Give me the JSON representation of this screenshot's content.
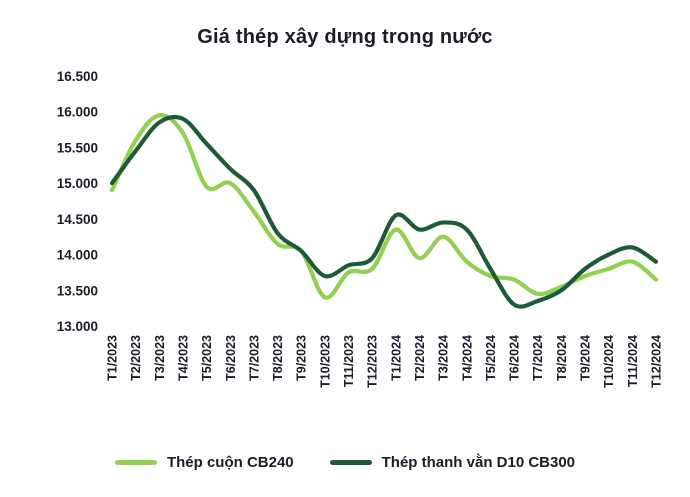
{
  "chart_data": {
    "type": "line",
    "title": "Giá thép xây dựng trong nước",
    "xlabel": "",
    "ylabel": "",
    "grid": false,
    "legend_position": "bottom",
    "x_label_rotation": -90,
    "ylim": [
      13000,
      16500
    ],
    "yticks": [
      {
        "value": 16500,
        "label": "16.500"
      },
      {
        "value": 16000,
        "label": "16.000"
      },
      {
        "value": 15500,
        "label": "15.500"
      },
      {
        "value": 15000,
        "label": "15.000"
      },
      {
        "value": 14500,
        "label": "14.500"
      },
      {
        "value": 14000,
        "label": "14.000"
      },
      {
        "value": 13500,
        "label": "13.500"
      },
      {
        "value": 13000,
        "label": "13.000"
      }
    ],
    "categories": [
      "T1/2023",
      "T2/2023",
      "T3/2023",
      "T4/2023",
      "T5/2023",
      "T6/2023",
      "T7/2023",
      "T8/2023",
      "T9/2023",
      "T10/2023",
      "T11/2023",
      "T12/2023",
      "T1/2024",
      "T2/2024",
      "T3/2024",
      "T4/2024",
      "T5/2024",
      "T6/2024",
      "T7/2024",
      "T8/2024",
      "T9/2024",
      "T10/2024",
      "T11/2024",
      "T12/2024"
    ],
    "series": [
      {
        "name": "Thép cuộn CB240",
        "color": "#92d050",
        "values": [
          14900,
          15600,
          15950,
          15700,
          14950,
          15000,
          14600,
          14150,
          14050,
          13400,
          13750,
          13800,
          14350,
          13950,
          14250,
          13900,
          13700,
          13650,
          13450,
          13550,
          13700,
          13800,
          13900,
          13650
        ]
      },
      {
        "name": "Thép thanh vằn D10 CB300",
        "color": "#1d5b38",
        "values": [
          15000,
          15450,
          15850,
          15900,
          15550,
          15200,
          14900,
          14300,
          14050,
          13700,
          13850,
          13950,
          14550,
          14350,
          14450,
          14350,
          13800,
          13300,
          13350,
          13500,
          13800,
          14000,
          14100,
          13900
        ]
      }
    ]
  }
}
